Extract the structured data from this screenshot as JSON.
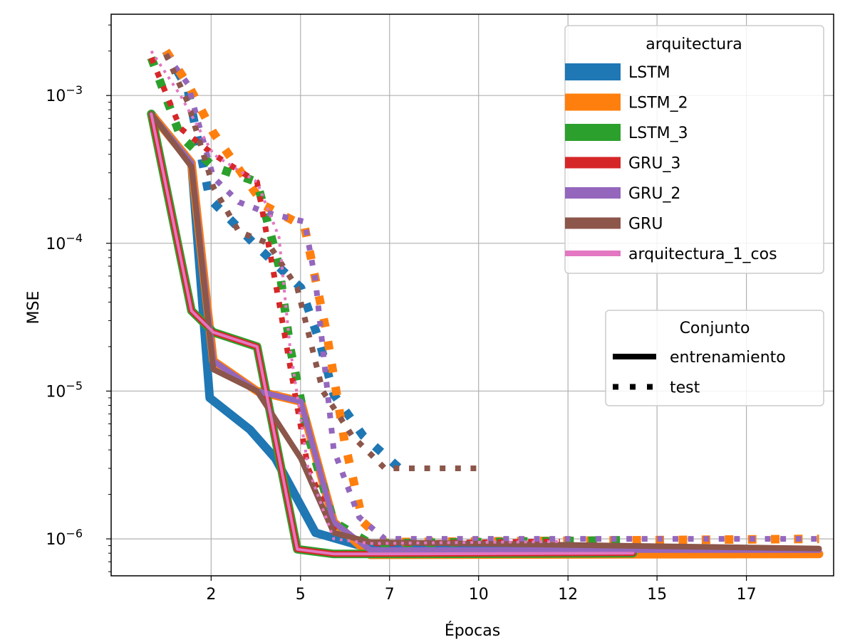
{
  "chart_data": {
    "type": "line",
    "title": "",
    "xlabel": "Épocas",
    "ylabel": "MSE",
    "xlim": [
      -0.3,
      19.5
    ],
    "ylim_log10": [
      -6.25,
      -2.45
    ],
    "x_ticks": [
      2,
      5,
      7,
      10,
      12,
      15,
      17
    ],
    "x_tick_positions": [
      2.44,
      4.89,
      7.33,
      9.77,
      12.22,
      14.66,
      17.11
    ],
    "y_scale": "log",
    "y_ticks": [
      {
        "base": "10",
        "exp": "−3",
        "log": -3
      },
      {
        "base": "10",
        "exp": "−4",
        "log": -4
      },
      {
        "base": "10",
        "exp": "−5",
        "log": -5
      },
      {
        "base": "10",
        "exp": "−6",
        "log": -6
      }
    ],
    "grid": true,
    "legend_arch": {
      "title": "arquitectura",
      "placement": "top-right",
      "entries": [
        "LSTM",
        "LSTM_2",
        "LSTM_3",
        "GRU_3",
        "GRU_2",
        "GRU",
        "arquitectura_1_cos"
      ]
    },
    "legend_set": {
      "title": "Conjunto",
      "placement": "center-right",
      "entries": [
        "entrenamiento",
        "test"
      ]
    },
    "series": [
      {
        "name": "LSTM",
        "set": "entrenamiento",
        "color": "#1f77b4",
        "width": 12,
        "x": [
          0.8,
          1.9,
          2.4,
          3.5,
          4.2,
          5.3,
          6.8,
          14.0
        ],
        "y": [
          0.00075,
          0.00035,
          9e-06,
          5.5e-06,
          3.5e-06,
          1.1e-06,
          8.6e-07,
          8.6e-07
        ]
      },
      {
        "name": "LSTM",
        "set": "test",
        "color": "#1f77b4",
        "width": 12,
        "x": [
          1.2,
          1.8,
          2.4,
          3.7,
          4.9,
          5.4,
          5.8,
          6.6,
          7.6
        ],
        "y": [
          0.002,
          0.0011,
          0.0002,
          9.5e-05,
          5e-05,
          2.2e-05,
          9.5e-06,
          5e-06,
          3e-06
        ]
      },
      {
        "name": "LSTM_2",
        "set": "entrenamiento",
        "color": "#ff7f0e",
        "width": 12,
        "x": [
          0.8,
          1.9,
          2.5,
          3.7,
          4.9,
          5.8,
          6.8,
          19.1
        ],
        "y": [
          0.00075,
          0.00035,
          1.6e-05,
          1e-05,
          8.5e-06,
          1.3e-06,
          7.8e-07,
          7.9e-07
        ]
      },
      {
        "name": "LSTM_2",
        "set": "test",
        "color": "#ff7f0e",
        "width": 12,
        "x": [
          1.2,
          1.8,
          2.5,
          3.9,
          5.0,
          5.6,
          6.1,
          6.6,
          7.2,
          19.1
        ],
        "y": [
          0.002,
          0.0012,
          0.00056,
          0.00018,
          0.00013,
          2.5e-05,
          4.5e-06,
          1.3e-06,
          9.5e-07,
          1e-06
        ]
      },
      {
        "name": "LSTM_3",
        "set": "entrenamiento",
        "color": "#2ca02c",
        "width": 12,
        "x": [
          0.8,
          1.9,
          2.5,
          3.7,
          4.8,
          5.8,
          7.2,
          14.0
        ],
        "y": [
          0.00075,
          3.5e-05,
          2.5e-05,
          2e-05,
          8.5e-07,
          7.9e-07,
          7.9e-07,
          8e-07
        ]
      },
      {
        "name": "LSTM_3",
        "set": "test",
        "color": "#2ca02c",
        "width": 12,
        "x": [
          0.8,
          1.6,
          2.5,
          3.7,
          4.3,
          4.6,
          5.1,
          5.8,
          6.8,
          14.0
        ],
        "y": [
          0.0018,
          0.00053,
          0.00033,
          0.00026,
          7e-05,
          2e-05,
          5e-06,
          1.3e-06,
          9.3e-07,
          9.8e-07
        ]
      },
      {
        "name": "GRU_3",
        "set": "entrenamiento",
        "color": "#d62728",
        "width": 8,
        "x": [
          0.8,
          1.9,
          2.5,
          3.7,
          4.8,
          5.8,
          7.2,
          14.0
        ],
        "y": [
          0.00075,
          3.5e-05,
          2.5e-05,
          2e-05,
          8.5e-07,
          7.9e-07,
          7.9e-07,
          8e-07
        ]
      },
      {
        "name": "GRU_3",
        "set": "test",
        "color": "#d62728",
        "width": 8,
        "x": [
          0.8,
          1.6,
          2.5,
          3.7,
          4.3,
          4.6,
          5.1,
          5.8,
          6.8,
          12.0
        ],
        "y": [
          0.0018,
          0.0006,
          0.0004,
          0.00026,
          4e-05,
          1.5e-05,
          3e-06,
          1.2e-06,
          9.3e-07,
          9.6e-07
        ]
      },
      {
        "name": "GRU_2",
        "set": "entrenamiento",
        "color": "#9467bd",
        "width": 8,
        "x": [
          0.8,
          1.9,
          2.5,
          3.7,
          4.9,
          5.8,
          6.8,
          19.1
        ],
        "y": [
          0.00075,
          0.00035,
          1.6e-05,
          1e-05,
          8.5e-06,
          1.3e-06,
          8.4e-07,
          8.4e-07
        ]
      },
      {
        "name": "GRU_2",
        "set": "test",
        "color": "#9467bd",
        "width": 8,
        "x": [
          1.2,
          1.8,
          2.5,
          3.2,
          4.0,
          5.0,
          5.3,
          5.8,
          6.5,
          7.2,
          19.1
        ],
        "y": [
          0.0019,
          0.0012,
          0.00028,
          0.00019,
          0.00016,
          0.00014,
          5.6e-05,
          4e-06,
          1.4e-06,
          1e-06,
          1e-06
        ]
      },
      {
        "name": "GRU",
        "set": "entrenamiento",
        "color": "#8c564b",
        "width": 8,
        "x": [
          0.8,
          1.9,
          2.5,
          3.7,
          4.9,
          5.8,
          6.8,
          19.1
        ],
        "y": [
          0.00075,
          0.00033,
          1.4e-05,
          1e-05,
          3.5e-06,
          1.1e-06,
          9.5e-07,
          8.6e-07
        ]
      },
      {
        "name": "GRU",
        "set": "test",
        "color": "#8c564b",
        "width": 8,
        "x": [
          1.2,
          1.8,
          2.5,
          3.2,
          4.0,
          4.8,
          5.5,
          6.3,
          7.2,
          9.8
        ],
        "y": [
          0.0019,
          0.0009,
          0.00024,
          0.00012,
          0.0001,
          5e-05,
          1e-05,
          5e-06,
          3e-06,
          3e-06
        ]
      },
      {
        "name": "arquitectura_1_cos",
        "set": "entrenamiento",
        "color": "#e377c2",
        "width": 4,
        "x": [
          0.8,
          1.9,
          2.5,
          3.7,
          4.8,
          5.8,
          7.2,
          14.0
        ],
        "y": [
          0.00075,
          3.5e-05,
          2.5e-05,
          2e-05,
          8.5e-07,
          7.9e-07,
          7.9e-07,
          8e-07
        ]
      },
      {
        "name": "arquitectura_1_cos",
        "set": "test",
        "color": "#e377c2",
        "width": 4,
        "x": [
          0.8,
          1.6,
          2.5,
          3.7,
          4.3,
          4.6,
          5.1,
          5.8,
          6.8,
          12.0
        ],
        "y": [
          0.002,
          0.001,
          0.0004,
          0.00026,
          0.00011,
          2e-05,
          3e-06,
          1e-06,
          9.3e-07,
          9.6e-07
        ]
      }
    ]
  }
}
